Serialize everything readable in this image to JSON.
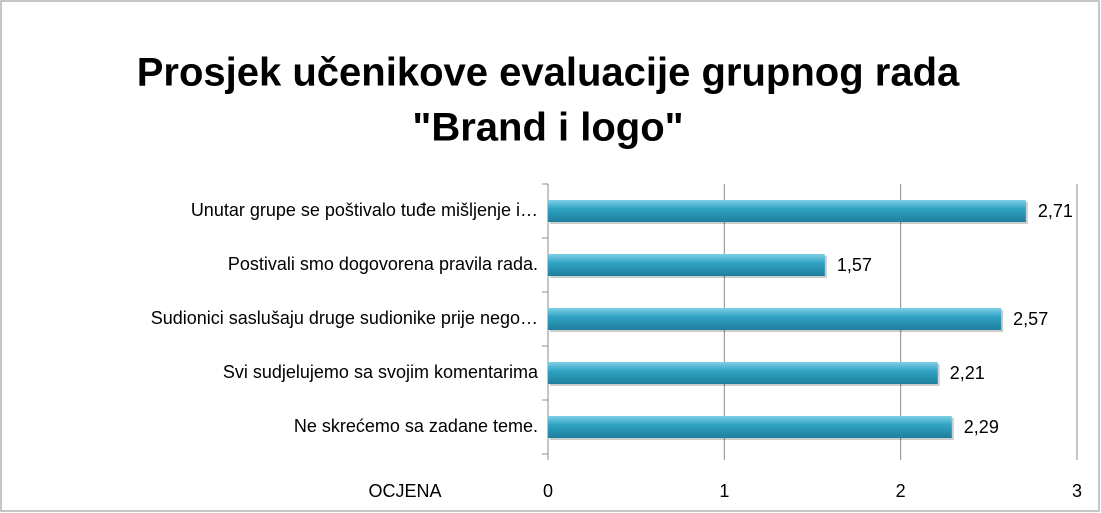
{
  "chart_data": {
    "type": "barh",
    "title": [
      "Prosjek učenikove evaluacije grupnog rada",
      "\"Brand i logo\""
    ],
    "x_label": "OCJENA",
    "categories": [
      "Unutar grupe se poštivalo tuđe mišljenje i…",
      "Postivali smo dogovorena pravila rada.",
      "Sudionici saslušaju druge sudionike prije nego…",
      "Svi sudjelujemo sa svojim komentarima",
      "Ne skrećemo sa zadane teme."
    ],
    "values": [
      2.71,
      1.57,
      2.57,
      2.21,
      2.29
    ],
    "value_labels": [
      "2,71",
      "1,57",
      "2,57",
      "2,21",
      "2,29"
    ],
    "color": "#31a3c4",
    "xlim": [
      0,
      3
    ],
    "xticks": [
      0,
      1,
      2,
      3
    ],
    "grid": true
  }
}
